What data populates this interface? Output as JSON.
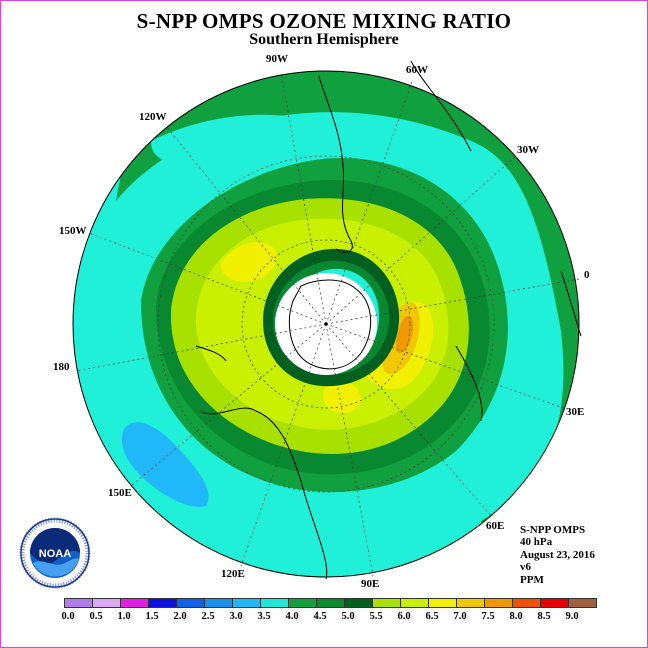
{
  "title": "S-NPP OMPS OZONE MIXING RATIO",
  "subtitle": "Southern Hemisphere",
  "longitude_labels": [
    "90W",
    "60W",
    "30W",
    "0",
    "30E",
    "60E",
    "90E",
    "120E",
    "150E",
    "180",
    "150W",
    "120W"
  ],
  "info": {
    "instrument": "S-NPP OMPS",
    "pressure": "40 hPa",
    "date": "August 23, 2016",
    "version": "v6",
    "unit": "PPM"
  },
  "logo_text": "NOAA",
  "colorbar": {
    "ticks": [
      "0.0",
      "0.5",
      "1.0",
      "1.5",
      "2.0",
      "2.5",
      "3.0",
      "3.5",
      "4.0",
      "4.5",
      "5.0",
      "5.5",
      "6.0",
      "6.5",
      "7.0",
      "7.5",
      "8.0",
      "8.5",
      "9.0"
    ],
    "colors": [
      "#b07ce8",
      "#d8a8f0",
      "#e020e0",
      "#1010e0",
      "#1060e8",
      "#1890f0",
      "#20b8f8",
      "#20e8d8",
      "#10a040",
      "#088830",
      "#006020",
      "#a8e000",
      "#c8f000",
      "#f0f000",
      "#f0c800",
      "#f09800",
      "#f05000",
      "#e80000",
      "#a06040"
    ]
  }
}
